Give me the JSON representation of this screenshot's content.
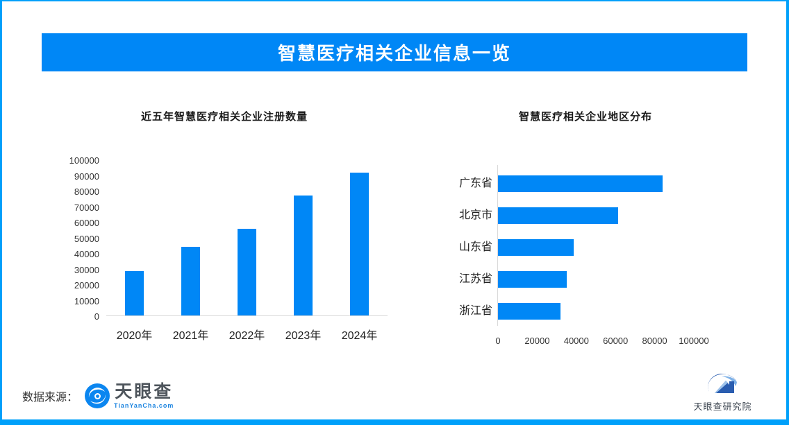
{
  "page": {
    "banner_title": "智慧医疗相关企业信息一览",
    "accent_color": "#0087f6",
    "frame_color": "#00a0fa"
  },
  "footer": {
    "source_label": "数据来源：",
    "tianyancha_name": "天眼查",
    "tianyancha_domain": "TianYanCha.com",
    "institute_name": "天眼查研究院"
  },
  "chart_data": [
    {
      "type": "bar",
      "orientation": "vertical",
      "title": "近五年智慧医疗相关企业注册数量",
      "categories": [
        "2020年",
        "2021年",
        "2022年",
        "2023年",
        "2024年"
      ],
      "values": [
        28500,
        44000,
        55500,
        77000,
        91500
      ],
      "ylim": [
        0,
        100000
      ],
      "yticks": [
        0,
        10000,
        20000,
        30000,
        40000,
        50000,
        60000,
        70000,
        80000,
        90000,
        100000
      ],
      "bar_color": "#0087f6",
      "grid": false,
      "legend": "none"
    },
    {
      "type": "bar",
      "orientation": "horizontal",
      "title": "智慧医疗相关企业地区分布",
      "categories": [
        "广东省",
        "北京市",
        "山东省",
        "江苏省",
        "浙江省"
      ],
      "values": [
        84000,
        61500,
        38500,
        35000,
        32000
      ],
      "xlim": [
        0,
        100000
      ],
      "xticks": [
        0,
        20000,
        40000,
        60000,
        80000,
        100000
      ],
      "bar_color": "#0087f6",
      "grid": false,
      "legend": "none"
    }
  ]
}
